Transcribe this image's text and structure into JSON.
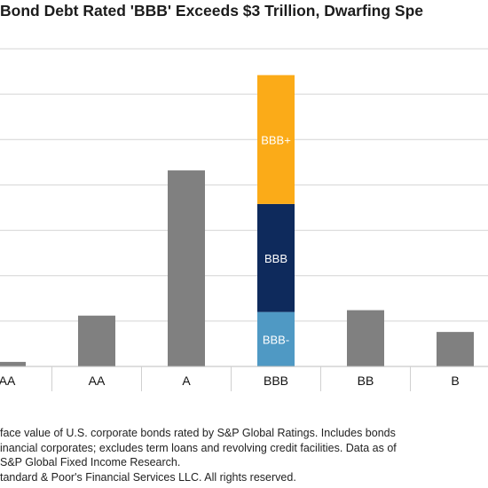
{
  "title": "Bond Debt Rated 'BBB' Exceeds $3 Trillion, Dwarfing Spe",
  "chart_data": {
    "type": "bar",
    "categories": [
      "AA",
      "AA",
      "A",
      "BBB",
      "BB",
      "B"
    ],
    "values": [
      0.05,
      0.56,
      2.16,
      null,
      0.62,
      0.38
    ],
    "stacked": {
      "category": "BBB",
      "segments": [
        {
          "label": "BBB-",
          "value": 0.6,
          "color": "#4f99c4"
        },
        {
          "label": "BBB",
          "value": 1.19,
          "color": "#0e2a5c"
        },
        {
          "label": "BBB+",
          "value": 1.42,
          "color": "#fbab18"
        }
      ]
    },
    "bar_color": "#808080",
    "ylim": [
      0,
      3.5
    ],
    "grid": true,
    "xlabel": "",
    "ylabel": ""
  },
  "footnote": {
    "line1": "face value of U.S. corporate bonds rated by S&P Global Ratings. Includes bonds",
    "line2": "inancial corporates; excludes term loans and revolving credit facilities. Data as of",
    "line3": "S&P Global Fixed Income Research.",
    "line4": "tandard & Poor's Financial Services LLC. All rights reserved."
  }
}
